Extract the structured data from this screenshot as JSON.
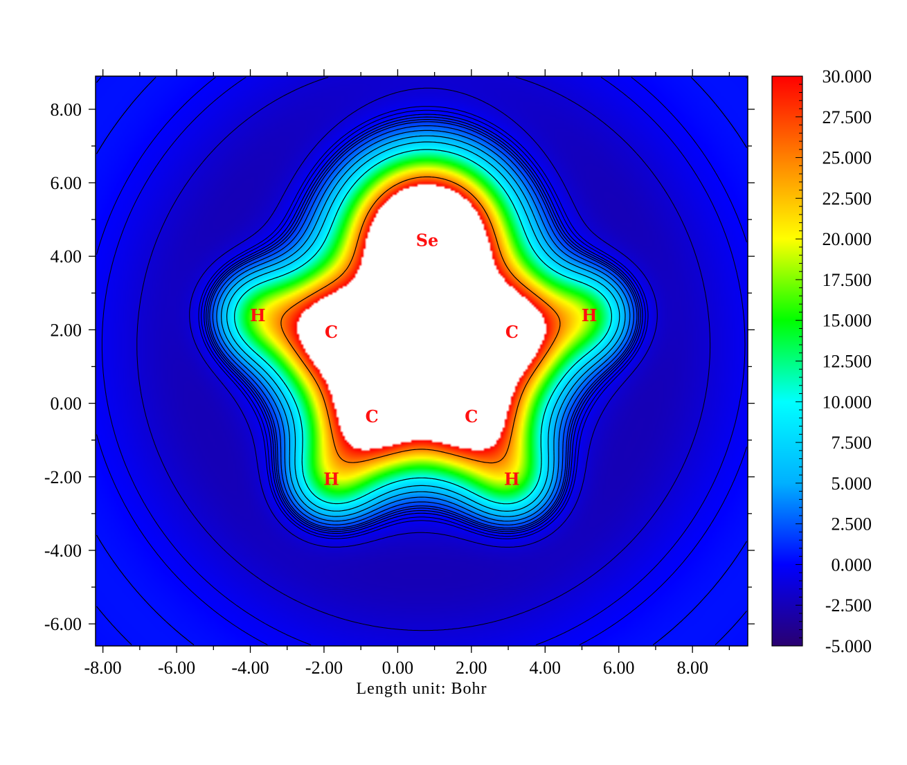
{
  "chart_data": {
    "type": "heatmap",
    "title": "",
    "xlabel": "Length unit: Bohr",
    "ylabel": "",
    "xlim": [
      -8.2,
      9.5
    ],
    "ylim": [
      -6.6,
      8.9
    ],
    "xticks": [
      -8,
      -6,
      -4,
      -2,
      0,
      2,
      4,
      6,
      8
    ],
    "xtick_labels": [
      "-8.00",
      "-6.00",
      "-4.00",
      "-2.00",
      "0.00",
      "2.00",
      "4.00",
      "6.00",
      "8.00"
    ],
    "yticks": [
      8,
      6,
      4,
      2,
      0,
      -2,
      -4,
      -6
    ],
    "ytick_labels": [
      "8.00",
      "6.00",
      "4.00",
      "2.00",
      "0.00",
      "-2.00",
      "-4.00",
      "-6.00"
    ],
    "colorbar": {
      "range": [
        -5,
        30
      ],
      "ticks": [
        30,
        27.5,
        25,
        22.5,
        20,
        17.5,
        15,
        12.5,
        10,
        7.5,
        5,
        2.5,
        0,
        -2.5,
        -5
      ],
      "tick_labels": [
        "30.000",
        "27.500",
        "25.000",
        "22.500",
        "20.000",
        "17.500",
        "15.000",
        "12.500",
        "10.000",
        "7.500",
        "5.000",
        "2.500",
        "0.000",
        "-2.500",
        "-5.000"
      ],
      "colors": [
        "#2a0070",
        "#0000ff",
        "#00b0ff",
        "#00ffff",
        "#00ff00",
        "#ffff00",
        "#ff8000",
        "#ff0000"
      ],
      "above_max_color": "#ffffff"
    },
    "atoms": [
      {
        "label": "Se",
        "x": 0.8,
        "y": 4.45
      },
      {
        "label": "C",
        "x": -1.8,
        "y": 1.95
      },
      {
        "label": "C",
        "x": 3.1,
        "y": 1.95
      },
      {
        "label": "C",
        "x": -0.7,
        "y": -0.35
      },
      {
        "label": "C",
        "x": 2.0,
        "y": -0.35
      },
      {
        "label": "H",
        "x": -3.8,
        "y": 2.4
      },
      {
        "label": "H",
        "x": 5.2,
        "y": 2.4
      },
      {
        "label": "H",
        "x": -1.8,
        "y": -2.05
      },
      {
        "label": "H",
        "x": 3.1,
        "y": -2.05
      }
    ],
    "contour_levels_solid": [
      0.4,
      0.8,
      1.2,
      1.6,
      2.4,
      3.5,
      5,
      7,
      10,
      25
    ],
    "contour_levels_dashed": [
      -0.1,
      -0.5,
      -1.5,
      -3
    ],
    "grid": false
  }
}
